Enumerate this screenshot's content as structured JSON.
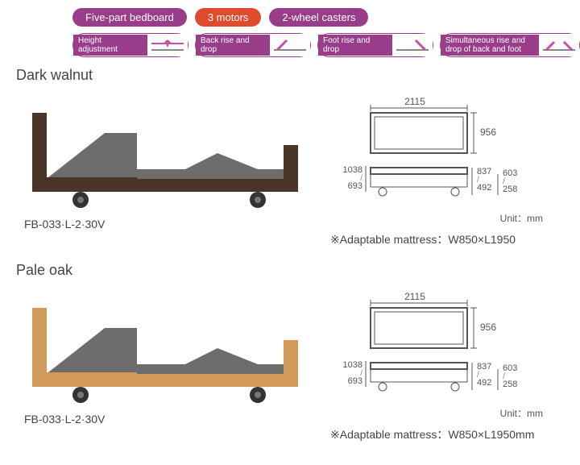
{
  "pills": [
    {
      "label": "Five-part bedboard",
      "bg": "#993d8a"
    },
    {
      "label": "3 motors",
      "bg": "#e04a2d"
    },
    {
      "label": "2-wheel casters",
      "bg": "#993d8a"
    }
  ],
  "features": [
    {
      "label": "Height adjustment",
      "icon": "height"
    },
    {
      "label": "Back rise and drop",
      "icon": "back"
    },
    {
      "label": "Foot rise and drop",
      "icon": "foot"
    },
    {
      "label": "Simultaneous rise and drop of  back and foot",
      "icon": "both",
      "width": 110
    }
  ],
  "variants": [
    {
      "name": "Dark walnut",
      "model": "FB-033·L-2·30V",
      "frame_color": "#4a3327",
      "mattress_color": "#6d6d6d",
      "mattress_note": "※Adaptable mattress：W850×L1950"
    },
    {
      "name": "Pale oak",
      "model": "FB-033·L-2·30V",
      "frame_color": "#d19a5b",
      "mattress_color": "#6d6d6d",
      "mattress_note": "※Adaptable mattress：W850×L1950mm"
    }
  ],
  "dimensions": {
    "top_width": "2115",
    "top_depth": "956",
    "side_height_high": "1038",
    "side_height_low": "693",
    "right_h1_high": "837",
    "right_h1_low": "492",
    "right_h2_high": "603",
    "right_h2_low": "258",
    "unit": "Unit：mm"
  },
  "colors": {
    "purple": "#993d8a",
    "dim_line": "#555555"
  }
}
